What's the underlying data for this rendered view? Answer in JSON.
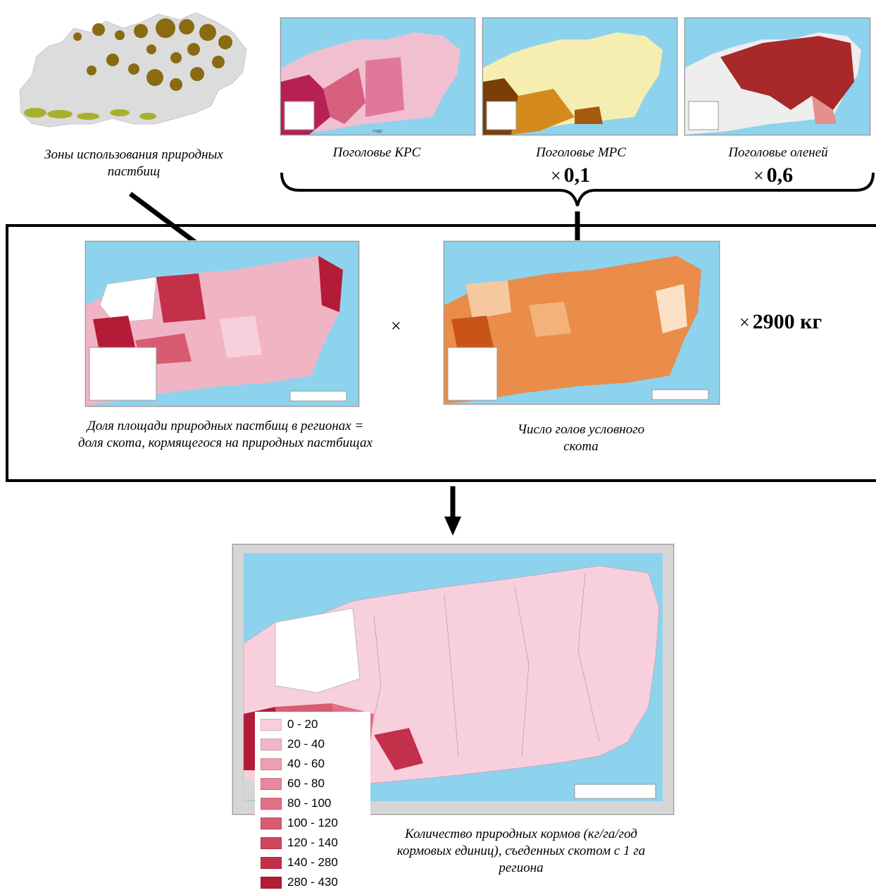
{
  "captions": {
    "zones": "Зоны использования природных пастбищ",
    "cattle": "Поголовье КРС",
    "small_cattle": "Поголовье МРС",
    "reindeer": "Поголовье оленей",
    "share_area": "Доля площади природных пастбищ в регионах = доля скота, кормящегося на природных пастбищах",
    "livestock_units": "Число голов условного скота",
    "result": "Количество природных кормов (кг/га/год кормовых единиц), съеденных скотом с 1 га региона"
  },
  "multipliers": {
    "small_cattle": "0,1",
    "reindeer": "0,6",
    "kg": "2900 кг",
    "times_symbol": "×"
  },
  "legend": {
    "items": [
      {
        "label": "0 - 20",
        "color": "#f8cfdc"
      },
      {
        "label": "20 - 40",
        "color": "#f3b6c6"
      },
      {
        "label": "40 - 60",
        "color": "#ee9eb0"
      },
      {
        "label": "60 - 80",
        "color": "#e8879c"
      },
      {
        "label": "80 - 100",
        "color": "#e07285"
      },
      {
        "label": "100 - 120",
        "color": "#d85c71"
      },
      {
        "label": "120 - 140",
        "color": "#cf475d"
      },
      {
        "label": "140 - 280",
        "color": "#c2304a"
      },
      {
        "label": "280 - 430",
        "color": "#b31b37"
      }
    ]
  },
  "colors": {
    "sea": "#8dd3ee",
    "land_grey": "#d9d9d9",
    "zone_brown": "#8a6b12",
    "zone_green": "#a7b02c",
    "pink_main": "#f6c6d4",
    "orange_main": "#ea8c4a",
    "yellow_main": "#f6eeb0",
    "reindeer_main": "#a9282a",
    "kps_main": "#d7607f"
  }
}
